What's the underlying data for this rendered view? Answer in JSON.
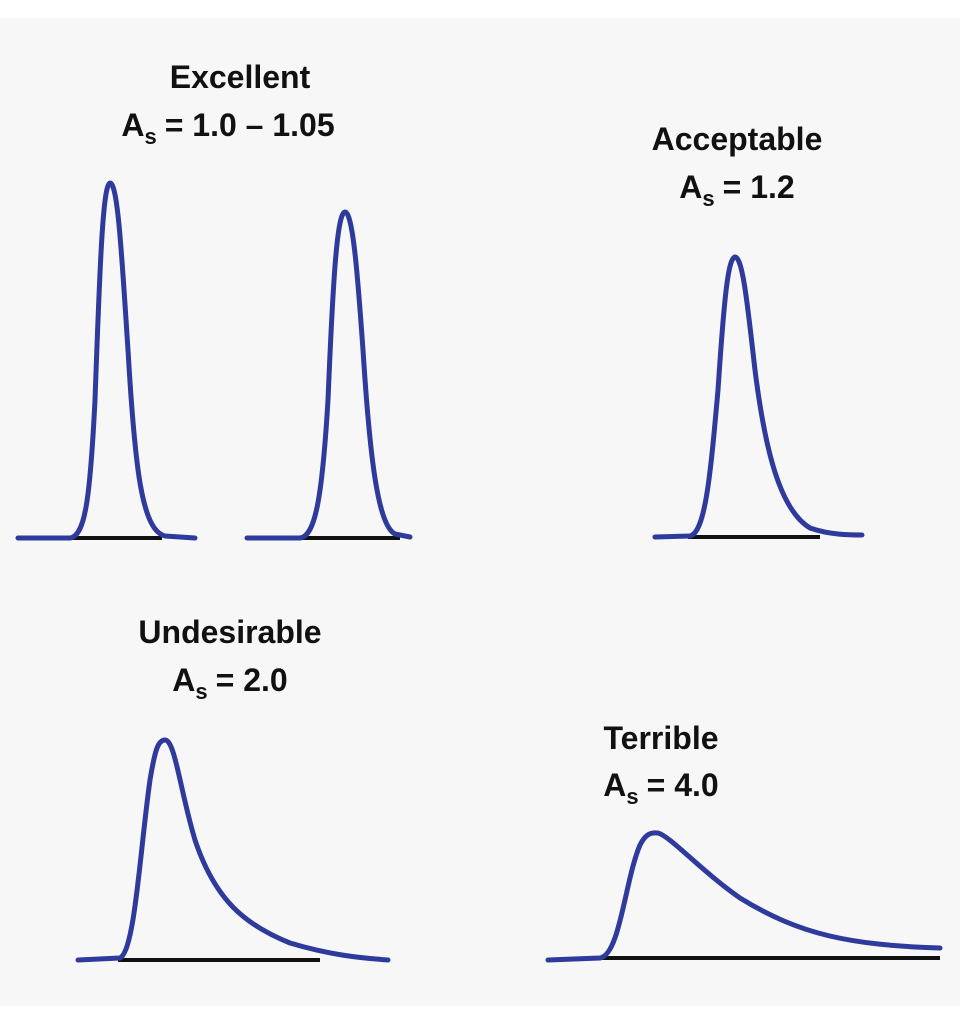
{
  "panels": [
    {
      "title": "Excellent",
      "symbol": "A",
      "subscript": "s",
      "value": "= 1.0 – 1.05"
    },
    {
      "title": "Acceptable",
      "symbol": "A",
      "subscript": "s",
      "value": "= 1.2"
    },
    {
      "title": "Undesirable",
      "symbol": "A",
      "subscript": "s",
      "value": "= 2.0"
    },
    {
      "title": "Terrible",
      "symbol": "A",
      "subscript": "s",
      "value": "= 4.0"
    }
  ]
}
